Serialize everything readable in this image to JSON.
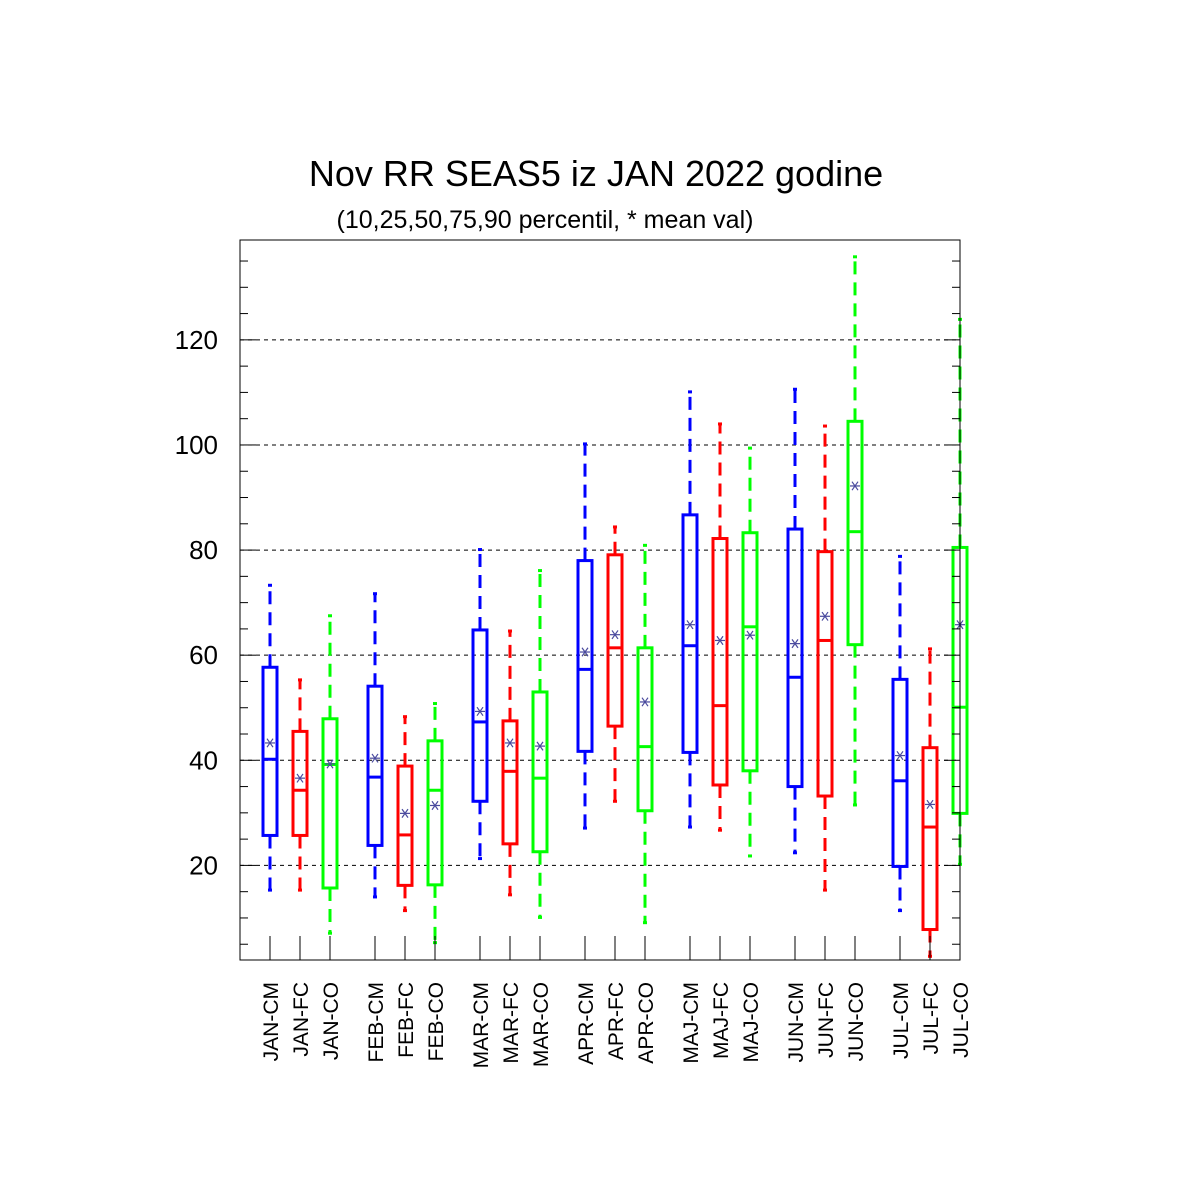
{
  "chart_data": {
    "type": "boxplot",
    "title": "Nov RR SEAS5 iz JAN 2022 godine",
    "subtitle": "(10,25,50,75,90 percentil, * mean val)",
    "xlabel": "",
    "ylabel": "",
    "ylim": [
      2,
      139
    ],
    "yticks": [
      20,
      40,
      60,
      80,
      100,
      120
    ],
    "grid": "horizontal dashed at y ticks",
    "colors": {
      "CM": "#0000ff",
      "FC": "#ff0000",
      "CO": "#00ff00",
      "mean_marker": "#4a4a9e"
    },
    "categories": [
      "JAN-CM",
      "JAN-FC",
      "JAN-CO",
      "FEB-CM",
      "FEB-FC",
      "FEB-CO",
      "MAR-CM",
      "MAR-FC",
      "MAR-CO",
      "APR-CM",
      "APR-FC",
      "APR-CO",
      "MAJ-CM",
      "MAJ-FC",
      "MAJ-CO",
      "JUN-CM",
      "JUN-FC",
      "JUN-CO",
      "JUL-CM",
      "JUL-FC",
      "JUL-CO"
    ],
    "boxes": [
      {
        "label": "JAN-CM",
        "group": "CM",
        "p10": 15.3,
        "p25": 25.7,
        "p50": 40.2,
        "p75": 57.7,
        "p90": 73.3,
        "mean": 43.3
      },
      {
        "label": "JAN-FC",
        "group": "FC",
        "p10": 15.3,
        "p25": 25.7,
        "p50": 34.3,
        "p75": 45.5,
        "p90": 55.3,
        "mean": 36.6
      },
      {
        "label": "JAN-CO",
        "group": "CO",
        "p10": 7.1,
        "p25": 15.7,
        "p50": 39.2,
        "p75": 47.9,
        "p90": 67.5,
        "mean": 39.3
      },
      {
        "label": "FEB-CM",
        "group": "CM",
        "p10": 14.0,
        "p25": 23.8,
        "p50": 36.8,
        "p75": 54.1,
        "p90": 71.7,
        "mean": 40.4
      },
      {
        "label": "FEB-FC",
        "group": "FC",
        "p10": 11.4,
        "p25": 16.2,
        "p50": 25.8,
        "p75": 38.9,
        "p90": 48.3,
        "mean": 29.9
      },
      {
        "label": "FEB-CO",
        "group": "CO",
        "p10": 5.3,
        "p25": 16.3,
        "p50": 34.3,
        "p75": 43.7,
        "p90": 50.8,
        "mean": 31.4
      },
      {
        "label": "MAR-CM",
        "group": "CM",
        "p10": 21.3,
        "p25": 32.2,
        "p50": 47.3,
        "p75": 64.8,
        "p90": 80.1,
        "mean": 49.3
      },
      {
        "label": "MAR-FC",
        "group": "FC",
        "p10": 14.4,
        "p25": 24.1,
        "p50": 37.9,
        "p75": 47.5,
        "p90": 64.6,
        "mean": 43.3
      },
      {
        "label": "MAR-CO",
        "group": "CO",
        "p10": 10.1,
        "p25": 22.6,
        "p50": 36.6,
        "p75": 53.0,
        "p90": 76.1,
        "mean": 42.7
      },
      {
        "label": "APR-CM",
        "group": "CM",
        "p10": 27.1,
        "p25": 41.7,
        "p50": 57.3,
        "p75": 78.0,
        "p90": 100.2,
        "mean": 60.6
      },
      {
        "label": "APR-FC",
        "group": "FC",
        "p10": 32.2,
        "p25": 46.5,
        "p50": 61.4,
        "p75": 79.1,
        "p90": 84.4,
        "mean": 63.9
      },
      {
        "label": "APR-CO",
        "group": "CO",
        "p10": 9.1,
        "p25": 30.4,
        "p50": 42.6,
        "p75": 61.4,
        "p90": 80.9,
        "mean": 51.1
      },
      {
        "label": "MAJ-CM",
        "group": "CM",
        "p10": 27.3,
        "p25": 41.5,
        "p50": 61.8,
        "p75": 86.7,
        "p90": 110.1,
        "mean": 65.8
      },
      {
        "label": "MAJ-FC",
        "group": "FC",
        "p10": 26.7,
        "p25": 35.3,
        "p50": 50.4,
        "p75": 82.2,
        "p90": 104.0,
        "mean": 62.8
      },
      {
        "label": "MAJ-CO",
        "group": "CO",
        "p10": 21.8,
        "p25": 38.0,
        "p50": 65.4,
        "p75": 83.3,
        "p90": 99.4,
        "mean": 63.8
      },
      {
        "label": "JUN-CM",
        "group": "CM",
        "p10": 22.4,
        "p25": 35.0,
        "p50": 55.8,
        "p75": 84.0,
        "p90": 110.6,
        "mean": 62.2
      },
      {
        "label": "JUN-FC",
        "group": "FC",
        "p10": 15.3,
        "p25": 33.2,
        "p50": 62.8,
        "p75": 79.7,
        "p90": 103.6,
        "mean": 67.4
      },
      {
        "label": "JUN-CO",
        "group": "CO",
        "p10": 31.5,
        "p25": 62.0,
        "p50": 83.5,
        "p75": 104.5,
        "p90": 135.8,
        "mean": 92.2
      },
      {
        "label": "JUL-CM",
        "group": "CM",
        "p10": 11.4,
        "p25": 19.8,
        "p50": 36.1,
        "p75": 55.4,
        "p90": 78.8,
        "mean": 40.9
      },
      {
        "label": "JUL-FC",
        "group": "FC",
        "p10": 2.7,
        "p25": 7.8,
        "p50": 27.3,
        "p75": 42.4,
        "p90": 61.2,
        "mean": 31.6
      },
      {
        "label": "JUL-CO",
        "group": "CO",
        "p10": 20.2,
        "p25": 29.9,
        "p50": 50.1,
        "p75": 80.5,
        "p90": 123.9,
        "mean": 65.8
      }
    ]
  }
}
